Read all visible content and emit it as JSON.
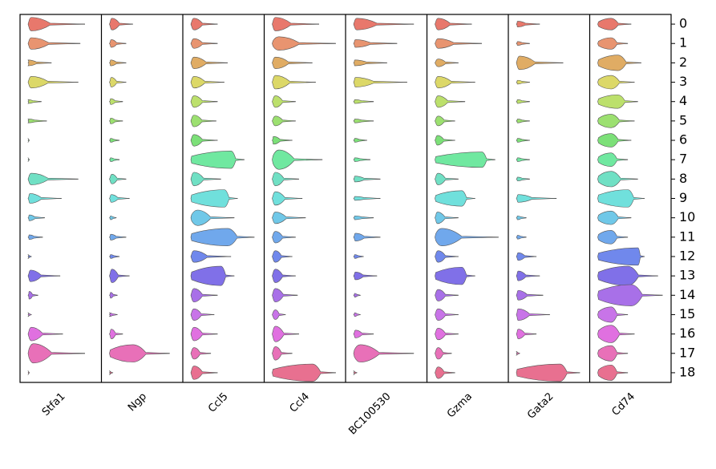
{
  "chart_data": {
    "type": "violin",
    "categories": [
      "0",
      "1",
      "2",
      "3",
      "4",
      "5",
      "6",
      "7",
      "8",
      "9",
      "10",
      "11",
      "12",
      "13",
      "14",
      "15",
      "16",
      "17",
      "18"
    ],
    "colors": [
      "#e8786c",
      "#e89470",
      "#e0ac64",
      "#dcd868",
      "#bce06c",
      "#9ce070",
      "#7ce078",
      "#70e8a0",
      "#70e0c4",
      "#70e0dc",
      "#70c8e8",
      "#70a8ec",
      "#7088ec",
      "#8070e8",
      "#a870e8",
      "#c874e8",
      "#e070e0",
      "#e870b8",
      "#e87090"
    ],
    "xlim": [
      0,
      1
    ],
    "series": [
      {
        "name": "Stfa1",
        "values": [
          0.85,
          0.78,
          0.35,
          0.75,
          0.2,
          0.28,
          0.02,
          0.02,
          0.75,
          0.5,
          0.25,
          0.22,
          0.05,
          0.48,
          0.15,
          0.05,
          0.52,
          0.85,
          0.02
        ],
        "modes": [
          0.05,
          0.05,
          0,
          0.05,
          0,
          0,
          0,
          0,
          0.05,
          0.03,
          0.02,
          0.02,
          0,
          0.04,
          0.02,
          0,
          0.05,
          0.08,
          0
        ],
        "widths": [
          0.35,
          0.3,
          0.15,
          0.3,
          0.1,
          0.1,
          0.1,
          0.1,
          0.3,
          0.25,
          0.15,
          0.12,
          0.1,
          0.3,
          0.2,
          0.1,
          0.35,
          0.5,
          0.1
        ]
      },
      {
        "name": "Ngp",
        "values": [
          0.35,
          0.25,
          0.25,
          0.25,
          0.2,
          0.2,
          0.15,
          0.15,
          0.25,
          0.3,
          0.1,
          0.25,
          0.15,
          0.3,
          0.12,
          0.12,
          0.2,
          0.9,
          0.05
        ],
        "modes": [
          0.04,
          0.03,
          0.02,
          0.03,
          0.02,
          0.02,
          0.02,
          0.02,
          0.04,
          0.03,
          0.02,
          0.02,
          0.02,
          0.04,
          0.02,
          0,
          0.03,
          0.35,
          0
        ],
        "widths": [
          0.3,
          0.2,
          0.15,
          0.25,
          0.15,
          0.15,
          0.1,
          0.1,
          0.25,
          0.2,
          0.1,
          0.15,
          0.1,
          0.35,
          0.15,
          0.1,
          0.25,
          0.45,
          0.1
        ]
      },
      {
        "name": "Ccl5",
        "values": [
          0.4,
          0.4,
          0.55,
          0.5,
          0.4,
          0.38,
          0.4,
          0.8,
          0.45,
          0.7,
          0.65,
          0.95,
          0.6,
          0.65,
          0.4,
          0.35,
          0.4,
          0.3,
          0.4
        ],
        "modes": [
          0.05,
          0.05,
          0.05,
          0.05,
          0.05,
          0.05,
          0.05,
          0.6,
          0.05,
          0.5,
          0.1,
          0.55,
          0.05,
          0.45,
          0.05,
          0.05,
          0.05,
          0.05,
          0.05
        ],
        "widths": [
          0.3,
          0.25,
          0.3,
          0.3,
          0.3,
          0.3,
          0.3,
          0.45,
          0.35,
          0.45,
          0.4,
          0.45,
          0.3,
          0.5,
          0.35,
          0.3,
          0.35,
          0.3,
          0.35
        ]
      },
      {
        "name": "Ccl4",
        "values": [
          0.7,
          0.95,
          0.6,
          0.65,
          0.35,
          0.35,
          0.3,
          0.75,
          0.4,
          0.45,
          0.5,
          0.35,
          0.3,
          0.35,
          0.38,
          0.2,
          0.4,
          0.3,
          0.95
        ],
        "modes": [
          0.05,
          0.1,
          0.05,
          0.05,
          0.05,
          0.05,
          0.02,
          0.1,
          0.05,
          0.05,
          0.05,
          0.05,
          0.05,
          0.05,
          0.05,
          0.05,
          0.05,
          0.05,
          0.6
        ],
        "widths": [
          0.35,
          0.35,
          0.3,
          0.35,
          0.3,
          0.25,
          0.2,
          0.5,
          0.35,
          0.35,
          0.3,
          0.3,
          0.3,
          0.35,
          0.35,
          0.25,
          0.4,
          0.35,
          0.45
        ]
      },
      {
        "name": "BC100530",
        "values": [
          0.9,
          0.65,
          0.5,
          0.8,
          0.3,
          0.3,
          0.2,
          0.25,
          0.4,
          0.4,
          0.3,
          0.4,
          0.15,
          0.35,
          0.1,
          0.1,
          0.3,
          0.9,
          0.05
        ],
        "modes": [
          0.05,
          0.03,
          0.02,
          0.03,
          0.02,
          0.02,
          0.02,
          0.02,
          0.02,
          0.02,
          0.02,
          0.03,
          0.02,
          0.03,
          0.02,
          0.02,
          0.03,
          0.1,
          0
        ],
        "widths": [
          0.3,
          0.2,
          0.15,
          0.25,
          0.1,
          0.1,
          0.1,
          0.1,
          0.15,
          0.1,
          0.1,
          0.2,
          0.1,
          0.2,
          0.1,
          0.1,
          0.2,
          0.45,
          0.1
        ]
      },
      {
        "name": "Gzma",
        "values": [
          0.55,
          0.7,
          0.35,
          0.6,
          0.45,
          0.3,
          0.3,
          0.9,
          0.35,
          0.6,
          0.35,
          0.95,
          0.35,
          0.6,
          0.35,
          0.35,
          0.35,
          0.25,
          0.3
        ],
        "modes": [
          0.05,
          0.05,
          0.05,
          0.05,
          0.05,
          0.05,
          0.04,
          0.7,
          0.05,
          0.4,
          0.04,
          0.1,
          0.05,
          0.4,
          0.05,
          0.05,
          0.05,
          0.05,
          0.05
        ],
        "widths": [
          0.3,
          0.25,
          0.2,
          0.3,
          0.3,
          0.25,
          0.25,
          0.4,
          0.3,
          0.4,
          0.3,
          0.45,
          0.3,
          0.45,
          0.3,
          0.3,
          0.3,
          0.3,
          0.3
        ]
      },
      {
        "name": "Gata2",
        "values": [
          0.35,
          0.2,
          0.7,
          0.2,
          0.2,
          0.2,
          0.2,
          0.2,
          0.2,
          0.6,
          0.15,
          0.15,
          0.3,
          0.35,
          0.4,
          0.5,
          0.3,
          0.05,
          0.95
        ],
        "modes": [
          0.02,
          0.02,
          0.05,
          0.02,
          0.02,
          0.02,
          0.02,
          0.02,
          0.02,
          0.03,
          0.02,
          0.02,
          0.03,
          0.03,
          0.03,
          0.03,
          0.03,
          0,
          0.65
        ],
        "widths": [
          0.15,
          0.1,
          0.35,
          0.1,
          0.1,
          0.1,
          0.1,
          0.1,
          0.1,
          0.2,
          0.1,
          0.1,
          0.2,
          0.25,
          0.25,
          0.3,
          0.25,
          0.1,
          0.45
        ]
      },
      {
        "name": "Cd74",
        "values": [
          0.5,
          0.45,
          0.65,
          0.55,
          0.6,
          0.55,
          0.5,
          0.45,
          0.6,
          0.7,
          0.5,
          0.45,
          0.7,
          0.9,
          0.97,
          0.45,
          0.55,
          0.45,
          0.45
        ],
        "modes": [
          0.2,
          0.2,
          0.3,
          0.2,
          0.3,
          0.2,
          0.2,
          0.2,
          0.2,
          0.45,
          0.2,
          0.2,
          0.6,
          0.45,
          0.5,
          0.2,
          0.2,
          0.2,
          0.2
        ],
        "widths": [
          0.3,
          0.3,
          0.4,
          0.35,
          0.35,
          0.35,
          0.35,
          0.35,
          0.4,
          0.45,
          0.35,
          0.35,
          0.45,
          0.5,
          0.55,
          0.4,
          0.45,
          0.4,
          0.4
        ]
      }
    ]
  }
}
